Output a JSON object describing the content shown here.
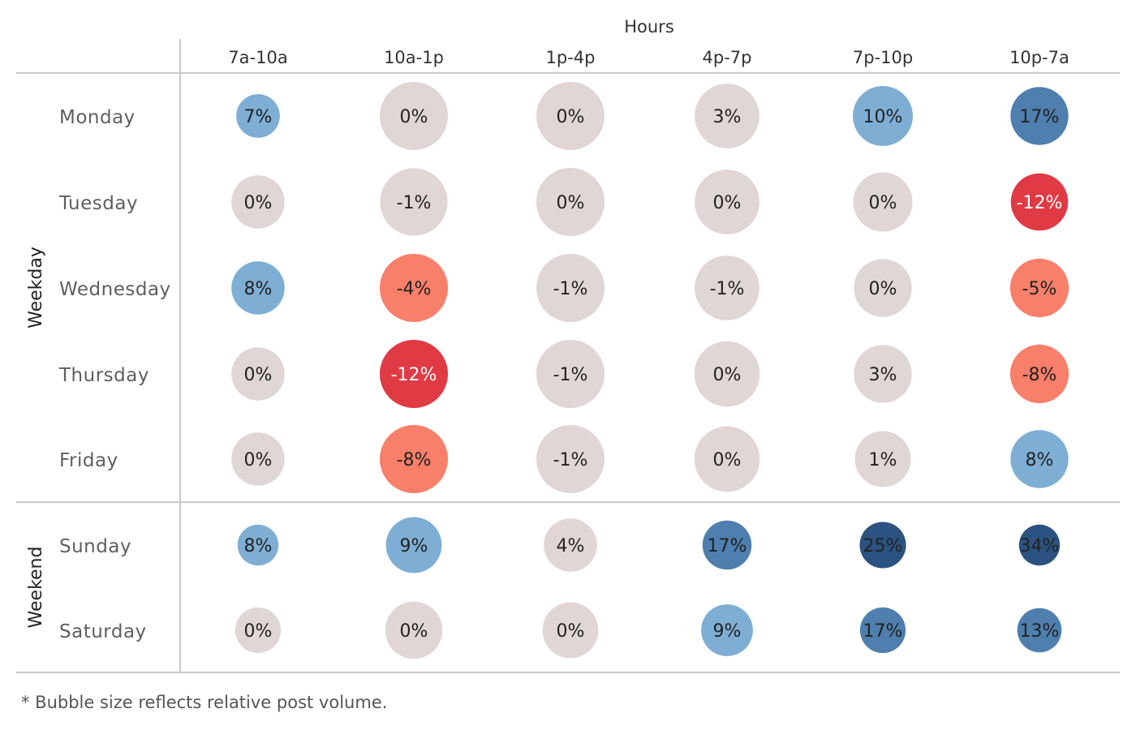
{
  "chart_data": {
    "type": "bubble-matrix",
    "title": "",
    "column_axis_title": "Hours",
    "columns": [
      "7a-10a",
      "10a-1p",
      "1p-4p",
      "4p-7p",
      "7p-10p",
      "10p-7a"
    ],
    "groups": [
      {
        "name": "Weekday",
        "rows": [
          {
            "day": "Monday",
            "values": [
              7,
              0,
              0,
              3,
              10,
              17
            ],
            "labels": [
              "7%",
              "0%",
              "0%",
              "3%",
              "10%",
              "17%"
            ],
            "relative_volume": [
              0.64,
              1.0,
              1.0,
              0.95,
              0.88,
              0.85
            ]
          },
          {
            "day": "Tuesday",
            "values": [
              0,
              -1,
              0,
              0,
              0,
              -12
            ],
            "labels": [
              "0%",
              "-1%",
              "0%",
              "0%",
              "0%",
              "-12%"
            ],
            "relative_volume": [
              0.78,
              0.99,
              1.0,
              0.95,
              0.87,
              0.84
            ]
          },
          {
            "day": "Wednesday",
            "values": [
              8,
              -4,
              -1,
              -1,
              0,
              -5
            ],
            "labels": [
              "8%",
              "-4%",
              "-1%",
              "-1%",
              "0%",
              "-5%"
            ],
            "relative_volume": [
              0.78,
              1.0,
              1.0,
              0.95,
              0.85,
              0.86
            ]
          },
          {
            "day": "Thursday",
            "values": [
              0,
              -12,
              -1,
              0,
              3,
              -8
            ],
            "labels": [
              "0%",
              "-12%",
              "-1%",
              "0%",
              "3%",
              "-8%"
            ],
            "relative_volume": [
              0.78,
              1.0,
              1.0,
              0.96,
              0.85,
              0.86
            ]
          },
          {
            "day": "Friday",
            "values": [
              0,
              -8,
              -1,
              0,
              1,
              8
            ],
            "labels": [
              "0%",
              "-8%",
              "-1%",
              "0%",
              "1%",
              "8%"
            ],
            "relative_volume": [
              0.78,
              1.0,
              1.0,
              0.96,
              0.82,
              0.85
            ]
          }
        ]
      },
      {
        "name": "Weekend",
        "rows": [
          {
            "day": "Sunday",
            "values": [
              8,
              9,
              4,
              17,
              25,
              34
            ],
            "labels": [
              "8%",
              "9%",
              "4%",
              "17%",
              "25%",
              "34%"
            ],
            "relative_volume": [
              0.6,
              0.82,
              0.78,
              0.72,
              0.68,
              0.6
            ]
          },
          {
            "day": "Saturday",
            "values": [
              0,
              0,
              0,
              9,
              17,
              13
            ],
            "labels": [
              "0%",
              "0%",
              "0%",
              "9%",
              "17%",
              "13%"
            ],
            "relative_volume": [
              0.67,
              0.84,
              0.82,
              0.76,
              0.67,
              0.65
            ]
          }
        ]
      }
    ],
    "size_encoding": "relative post volume",
    "color_scale": {
      "type": "diverging",
      "negative_strong": "#e03a45",
      "negative_mid": "#f87f6a",
      "neutral": "#e0d6d5",
      "positive_mid": "#7eaed4",
      "positive_strong": "#4e7fae",
      "positive_max": "#2b5281"
    },
    "footnote": "* Bubble size reflects relative post volume."
  }
}
